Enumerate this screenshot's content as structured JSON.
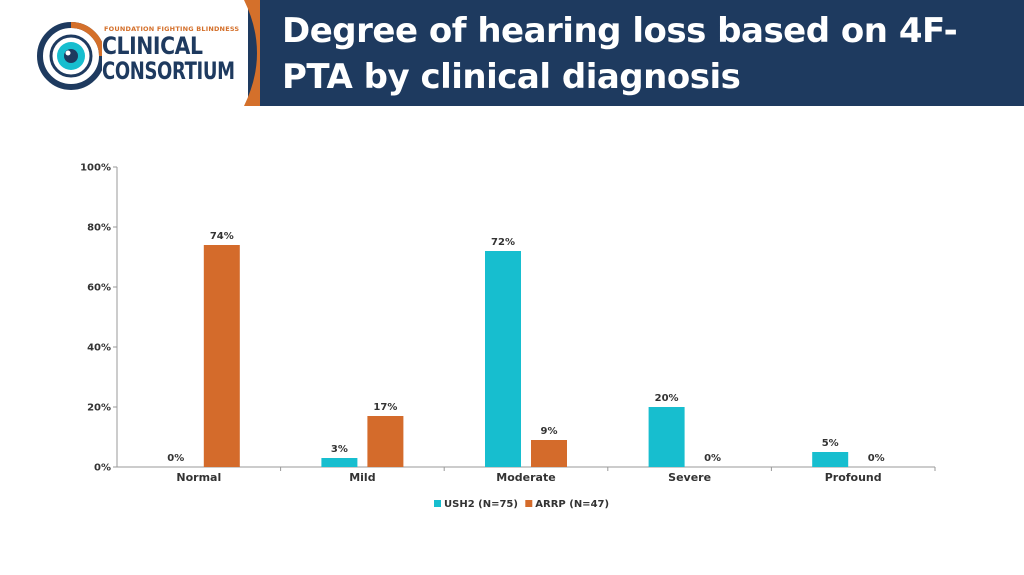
{
  "header": {
    "title": "Degree of hearing loss based on 4F-PTA by clinical diagnosis",
    "logo_org": "FOUNDATION FIGHTING BLINDNESS",
    "logo_line1": "CLINICAL",
    "logo_line2": "CONSORTIUM",
    "band_color": "#1e3a5f",
    "accent_color": "#d4702b"
  },
  "chart_data": {
    "type": "bar",
    "title": "",
    "xlabel": "",
    "ylabel": "",
    "categories": [
      "Normal",
      "Mild",
      "Moderate",
      "Severe",
      "Profound"
    ],
    "series": [
      {
        "name": "USH2 (N=75)",
        "color": "#17becf",
        "values": [
          0,
          3,
          72,
          20,
          5
        ],
        "labels": [
          "0%",
          "3%",
          "72%",
          "20%",
          "5%"
        ]
      },
      {
        "name": "ARRP (N=47)",
        "color": "#d46b2b",
        "values": [
          74,
          17,
          9,
          0,
          0
        ],
        "labels": [
          "74%",
          "17%",
          "9%",
          "0%",
          "0%"
        ]
      }
    ],
    "ylim": [
      0,
      100
    ],
    "yticks": [
      0,
      20,
      40,
      60,
      80,
      100
    ],
    "ytick_labels": [
      "0%",
      "20%",
      "40%",
      "60%",
      "80%",
      "100%"
    ],
    "grid": false,
    "legend": "bottom-center"
  }
}
